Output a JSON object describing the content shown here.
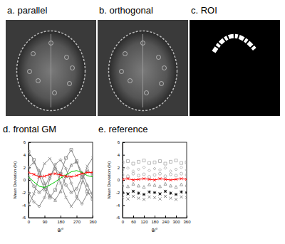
{
  "images": [
    {
      "label": "a. parallel"
    },
    {
      "label": "b. orthogonal"
    },
    {
      "label": "c. ROI"
    }
  ],
  "chart_data": [
    {
      "type": "line",
      "title": "d. frontal GM",
      "x_label": "θ/°",
      "y_label": "Mean Deviation (%)",
      "line_style": "solid",
      "x": [
        0,
        30,
        60,
        90,
        120,
        150,
        180,
        210,
        240,
        270,
        300,
        330,
        360
      ],
      "xlim": [
        0,
        360
      ],
      "xticks": [
        0,
        90,
        180,
        270,
        360
      ],
      "ylim": [
        -6,
        6
      ],
      "yticks": [
        -6,
        -4,
        -2,
        0,
        2,
        4,
        6
      ],
      "series": [
        {
          "color": "#888888",
          "marker": "square",
          "values": [
            4.5,
            3.2,
            0.8,
            -1.5,
            -2.8,
            -1.6,
            1.0,
            3.5,
            4.8,
            3.0,
            0.5,
            -1.8,
            -3.0
          ]
        },
        {
          "color": "#888888",
          "marker": "diamond",
          "values": [
            -2.0,
            -3.5,
            -4.2,
            -2.8,
            0.2,
            2.5,
            3.2,
            1.8,
            -0.5,
            -2.6,
            -3.8,
            -2.2,
            -2.0
          ]
        },
        {
          "color": "#888888",
          "marker": "triangle",
          "values": [
            2.0,
            2.8,
            1.5,
            -0.5,
            -2.5,
            -3.2,
            -1.8,
            0.6,
            2.4,
            2.9,
            1.2,
            -0.8,
            -2.6
          ]
        },
        {
          "color": "#888888",
          "marker": "x",
          "values": [
            -4.0,
            -2.2,
            0.5,
            2.6,
            3.4,
            2.0,
            -0.5,
            -2.8,
            -4.2,
            -3.0,
            -0.4,
            2.2,
            3.5
          ]
        },
        {
          "color": "#888888",
          "marker": "circle",
          "values": [
            0.5,
            -1.0,
            -2.0,
            -1.2,
            0.6,
            1.8,
            1.0,
            -0.8,
            -2.0,
            -1.4,
            0.4,
            1.6,
            0.8
          ]
        },
        {
          "color": "#00cc00",
          "marker": "none",
          "values": [
            0.5,
            -0.3,
            -1.0,
            -1.2,
            -0.8,
            -0.3,
            0.3,
            0.8,
            1.3,
            1.5,
            1.2,
            0.7,
            0.5
          ]
        },
        {
          "color": "#ff0000",
          "marker": "x",
          "values": [
            1.2,
            0.9,
            0.5,
            0.6,
            0.9,
            1.0,
            0.8,
            0.6,
            0.5,
            0.7,
            1.0,
            1.2,
            1.2
          ]
        }
      ]
    },
    {
      "type": "scatter",
      "title": "e. reference",
      "x_label": "θ/°",
      "y_label": "Mean Deviation (%)",
      "line_style": "none",
      "x": [
        0,
        30,
        60,
        90,
        120,
        150,
        180,
        210,
        240,
        270,
        300,
        330,
        360
      ],
      "xlim": [
        0,
        360
      ],
      "xticks": [
        0,
        60,
        120,
        180,
        240,
        300,
        360
      ],
      "ylim": [
        -6,
        6
      ],
      "yticks": [
        -6,
        -4,
        -2,
        0,
        2,
        4,
        6
      ],
      "series": [
        {
          "color": "#aaaaaa",
          "marker": "square",
          "values": [
            2.8,
            3.0,
            2.6,
            2.9,
            3.1,
            2.7,
            2.8,
            3.0,
            2.6,
            2.9,
            3.1,
            2.7,
            2.8
          ]
        },
        {
          "color": "#aaaaaa",
          "marker": "diamond",
          "values": [
            1.6,
            1.9,
            1.4,
            1.7,
            2.0,
            1.5,
            1.8,
            1.6,
            1.9,
            1.4,
            1.7,
            2.0,
            1.6
          ]
        },
        {
          "color": "#aaaaaa",
          "marker": "circle",
          "values": [
            0.8,
            0.6,
            1.0,
            0.7,
            0.9,
            0.5,
            0.8,
            1.0,
            0.6,
            0.9,
            0.7,
            1.0,
            0.8
          ]
        },
        {
          "type": "line",
          "line_style": "solid",
          "color": "#ff0000",
          "marker": "x",
          "values": [
            0.1,
            0.2,
            0.0,
            0.1,
            0.2,
            0.1,
            0.0,
            0.2,
            0.1,
            0.0,
            0.1,
            0.2,
            0.1
          ]
        },
        {
          "color": "#888888",
          "marker": "triangle",
          "values": [
            -0.8,
            -1.0,
            -0.6,
            -0.9,
            -1.1,
            -0.7,
            -0.8,
            -1.0,
            -0.6,
            -0.9,
            -1.1,
            -0.7,
            -0.8
          ]
        },
        {
          "color": "#000000",
          "marker": "asterisk",
          "values": [
            -2.0,
            -2.2,
            -1.8,
            -2.1,
            -2.3,
            -1.9,
            -2.0,
            -2.2,
            -1.8,
            -2.1,
            -2.3,
            -1.9,
            -2.0
          ]
        },
        {
          "color": "#666666",
          "marker": "x",
          "values": [
            -2.8,
            -3.0,
            -2.6,
            -2.9,
            -3.1,
            -2.7,
            -2.8,
            -3.0,
            -2.6,
            -2.9,
            -3.1,
            -2.7,
            -2.8
          ]
        }
      ]
    }
  ]
}
